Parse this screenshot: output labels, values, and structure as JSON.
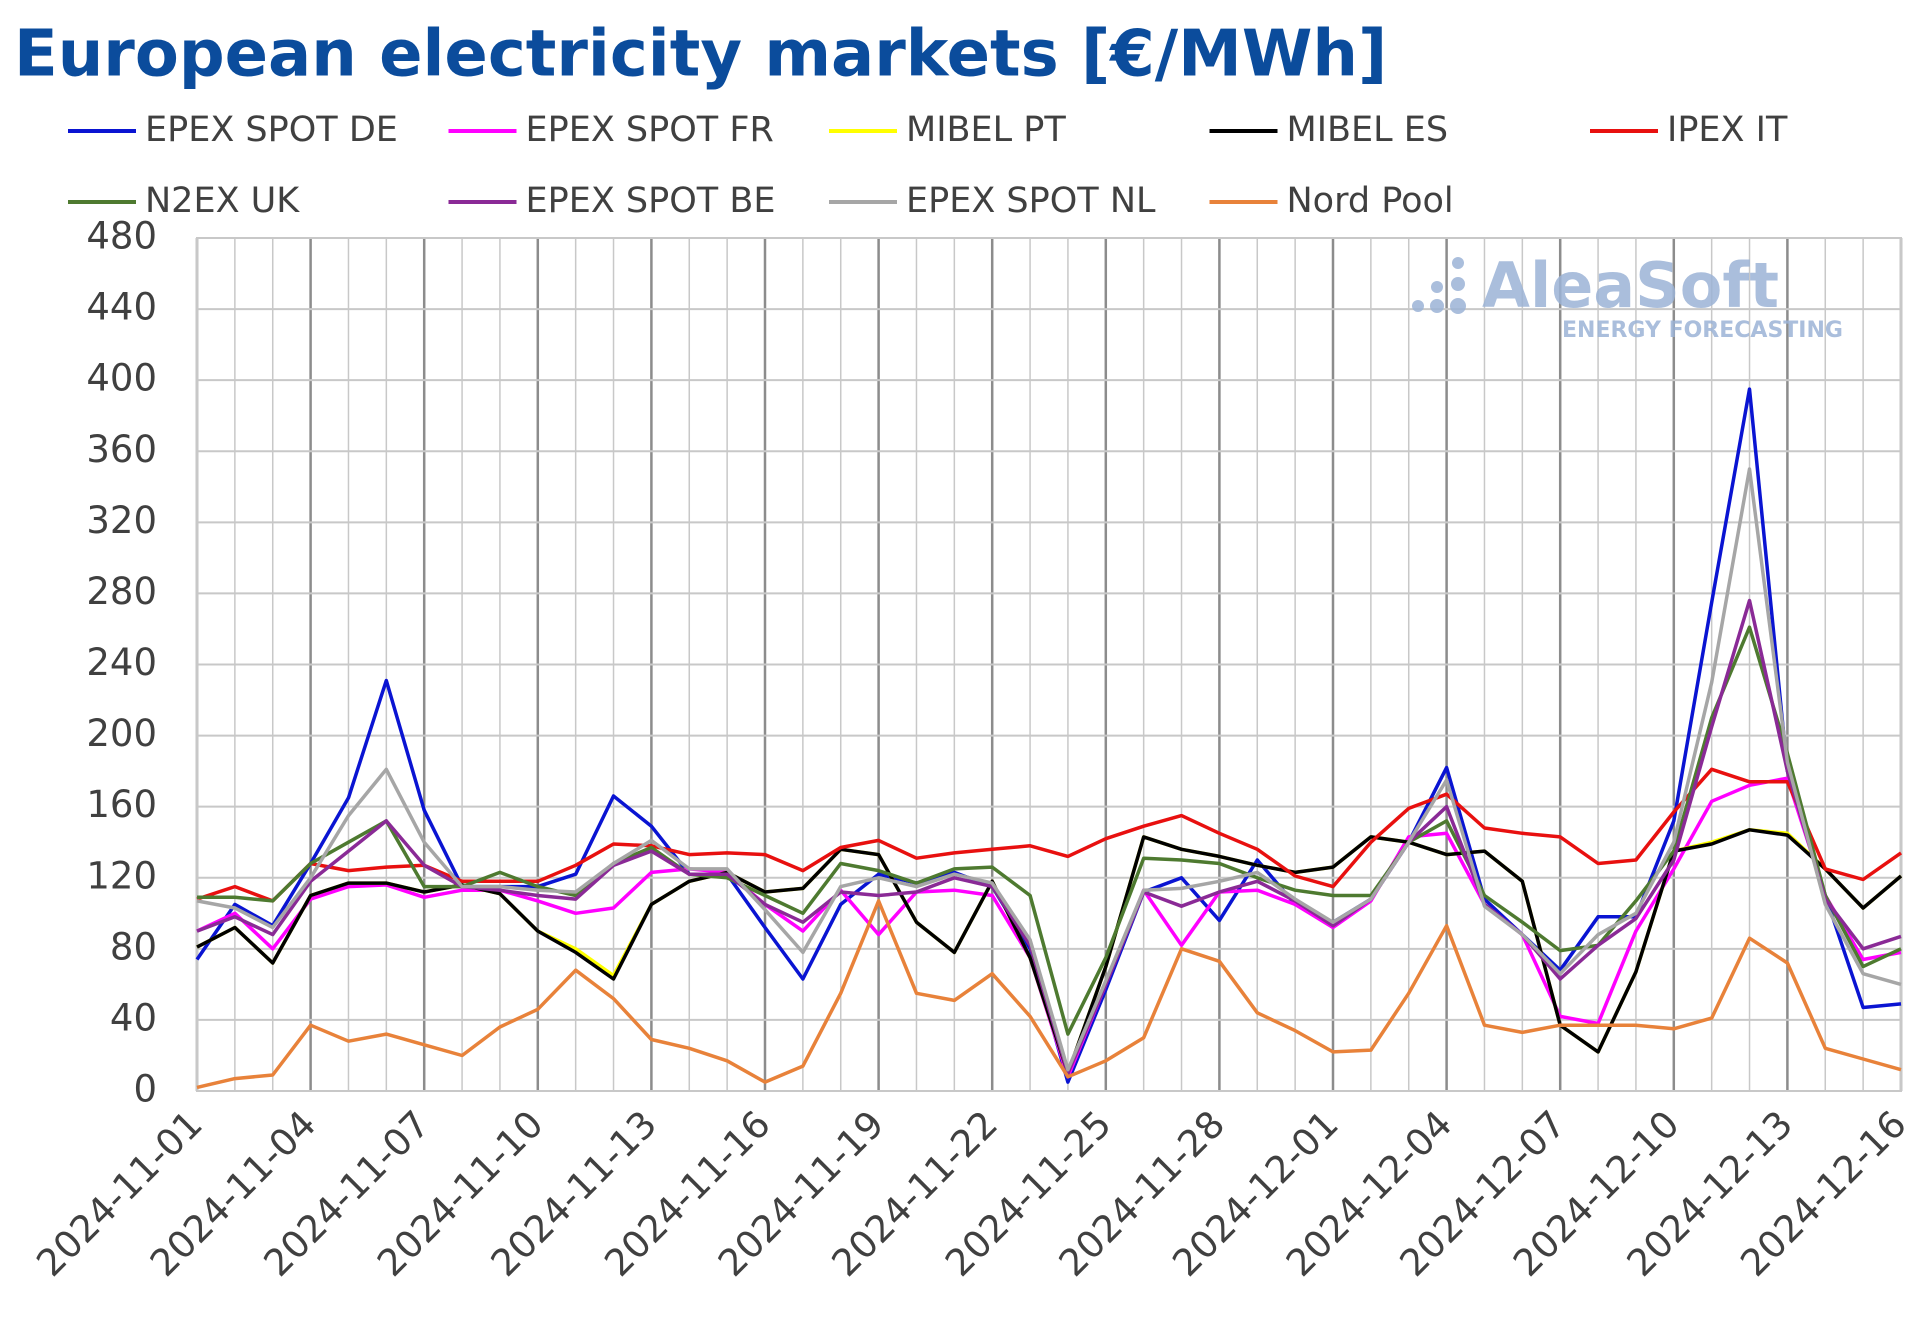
{
  "chart_data": {
    "type": "line",
    "title": "European electricity markets [€/MWh]",
    "logo": {
      "name": "AleaSoft",
      "tagline": "ENERGY FORECASTING"
    },
    "categories": [
      "2024-11-01",
      null,
      null,
      "2024-11-04",
      null,
      null,
      "2024-11-07",
      null,
      null,
      "2024-11-10",
      null,
      null,
      "2024-11-13",
      null,
      null,
      "2024-11-16",
      null,
      null,
      "2024-11-19",
      null,
      null,
      "2024-11-22",
      null,
      null,
      "2024-11-25",
      null,
      null,
      "2024-11-28",
      null,
      null,
      "2024-12-01",
      null,
      null,
      "2024-12-04",
      null,
      null,
      "2024-12-07",
      null,
      null,
      "2024-12-10",
      null,
      null,
      "2024-12-13",
      null,
      null,
      "2024-12-16"
    ],
    "ylim": [
      0,
      480
    ],
    "yticks": [
      0,
      40,
      80,
      120,
      160,
      200,
      240,
      280,
      320,
      360,
      400,
      440,
      480
    ],
    "grid": true,
    "series": [
      {
        "name": "EPEX SPOT DE",
        "color": "#0a14d2",
        "values": [
          74,
          105,
          93,
          128,
          165,
          231,
          158,
          115,
          115,
          115,
          122,
          166,
          149,
          122,
          122,
          92,
          63,
          105,
          122,
          117,
          123,
          115,
          80,
          5,
          57,
          112,
          120,
          96,
          130,
          105,
          95,
          108,
          140,
          182,
          108,
          88,
          68,
          98,
          98,
          152,
          275,
          395,
          180,
          110,
          47,
          49
        ]
      },
      {
        "name": "EPEX SPOT FR",
        "color": "#ff00ff",
        "values": [
          90,
          100,
          80,
          108,
          115,
          116,
          109,
          113,
          113,
          107,
          100,
          103,
          123,
          125,
          123,
          105,
          90,
          113,
          88,
          112,
          113,
          110,
          75,
          8,
          60,
          113,
          82,
          112,
          113,
          105,
          92,
          107,
          143,
          145,
          105,
          88,
          42,
          38,
          90,
          125,
          163,
          172,
          176,
          110,
          74,
          78
        ]
      },
      {
        "name": "MIBEL PT",
        "color": "#ffff00",
        "values": [
          81,
          92,
          72,
          110,
          117,
          117,
          112,
          116,
          111,
          90,
          80,
          65,
          105,
          118,
          123,
          112,
          114,
          136,
          133,
          95,
          78,
          118,
          75,
          10,
          70,
          143,
          136,
          132,
          127,
          123,
          126,
          143,
          140,
          133,
          135,
          118,
          37,
          22,
          67,
          135,
          140,
          147,
          145,
          125,
          103,
          121
        ]
      },
      {
        "name": "MIBEL ES",
        "color": "#000000",
        "values": [
          81,
          92,
          72,
          110,
          117,
          117,
          112,
          116,
          111,
          90,
          78,
          63,
          105,
          118,
          123,
          112,
          114,
          136,
          133,
          95,
          78,
          118,
          75,
          10,
          70,
          143,
          136,
          132,
          127,
          123,
          126,
          143,
          140,
          133,
          135,
          118,
          37,
          22,
          67,
          135,
          139,
          147,
          144,
          125,
          103,
          121
        ]
      },
      {
        "name": "IPEX IT",
        "color": "#e8100f",
        "values": [
          108,
          115,
          107,
          128,
          124,
          126,
          127,
          118,
          118,
          118,
          127,
          139,
          138,
          133,
          134,
          133,
          124,
          137,
          141,
          131,
          134,
          136,
          138,
          132,
          142,
          149,
          155,
          145,
          136,
          121,
          115,
          140,
          159,
          167,
          148,
          145,
          143,
          128,
          130,
          157,
          181,
          174,
          174,
          125,
          119,
          134
        ]
      },
      {
        "name": "N2EX UK",
        "color": "#4e7a30",
        "values": [
          109,
          109,
          107,
          128,
          140,
          152,
          115,
          115,
          123,
          115,
          110,
          128,
          137,
          122,
          120,
          110,
          100,
          128,
          124,
          117,
          125,
          126,
          110,
          32,
          75,
          131,
          130,
          128,
          120,
          113,
          110,
          110,
          140,
          152,
          110,
          95,
          79,
          82,
          107,
          135,
          210,
          261,
          190,
          110,
          70,
          80
        ]
      },
      {
        "name": "EPEX SPOT BE",
        "color": "#8a2a96",
        "values": [
          90,
          98,
          88,
          118,
          135,
          152,
          127,
          115,
          113,
          110,
          108,
          127,
          135,
          122,
          122,
          105,
          95,
          112,
          110,
          112,
          120,
          115,
          82,
          10,
          60,
          112,
          104,
          112,
          118,
          107,
          93,
          108,
          140,
          160,
          105,
          88,
          63,
          82,
          97,
          130,
          205,
          276,
          180,
          108,
          80,
          87
        ]
      },
      {
        "name": "EPEX SPOT NL",
        "color": "#a6a6a6",
        "values": [
          107,
          103,
          92,
          120,
          155,
          181,
          140,
          115,
          115,
          113,
          112,
          128,
          141,
          125,
          125,
          102,
          78,
          115,
          120,
          115,
          122,
          117,
          85,
          12,
          62,
          113,
          114,
          118,
          123,
          108,
          95,
          108,
          140,
          175,
          104,
          88,
          66,
          88,
          100,
          140,
          230,
          350,
          185,
          105,
          66,
          60
        ]
      },
      {
        "name": "Nord Pool",
        "color": "#e8823a",
        "values": [
          2,
          7,
          9,
          37,
          28,
          32,
          26,
          20,
          36,
          46,
          68,
          52,
          29,
          24,
          17,
          5,
          14,
          55,
          107,
          55,
          51,
          66,
          42,
          8,
          17,
          30,
          80,
          73,
          44,
          34,
          22,
          23,
          55,
          93,
          37,
          33,
          37,
          37,
          37,
          35,
          41,
          86,
          72,
          24,
          18,
          12
        ]
      }
    ]
  }
}
